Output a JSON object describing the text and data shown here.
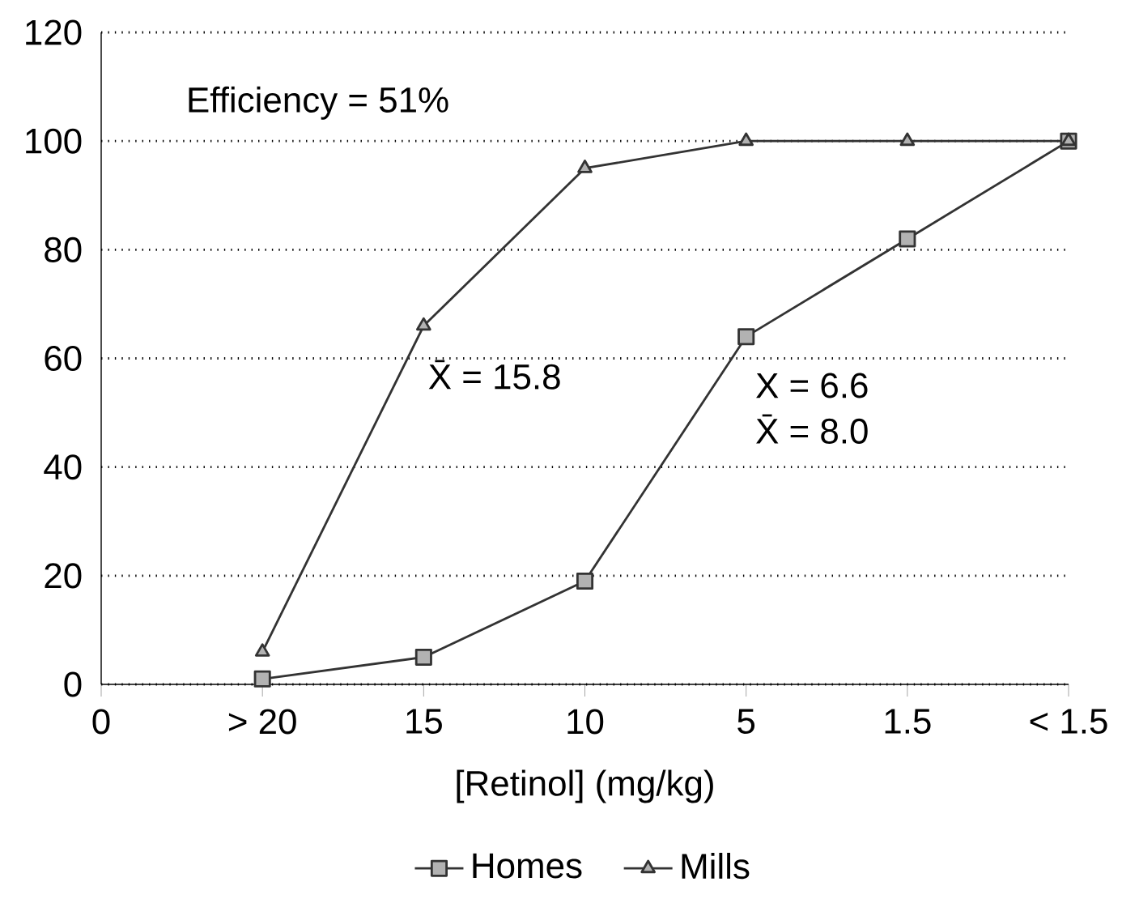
{
  "chart_data": {
    "type": "line",
    "xlabel": "[Retinol] (mg/kg)",
    "categories": [
      "0",
      "> 20",
      "15",
      "10",
      "5",
      "1.5",
      "< 1.5"
    ],
    "series": [
      {
        "name": "Mills",
        "color": "#333333",
        "marker": "triangle",
        "values": [
          null,
          6,
          66,
          95,
          100,
          100,
          100
        ]
      },
      {
        "name": "Homes",
        "color": "#333333",
        "marker": "square",
        "values": [
          null,
          1,
          5,
          19,
          64,
          82,
          100
        ]
      }
    ],
    "ylim": [
      0,
      120
    ],
    "yticks": [
      0,
      20,
      40,
      60,
      80,
      100,
      120
    ],
    "grid": "y",
    "legend": "bottom",
    "line_style": "solid",
    "annotations": [
      "Efficiency = 51%",
      "X̄ = 15.8",
      "X = 6.6",
      "X̄ = 8.0"
    ]
  }
}
